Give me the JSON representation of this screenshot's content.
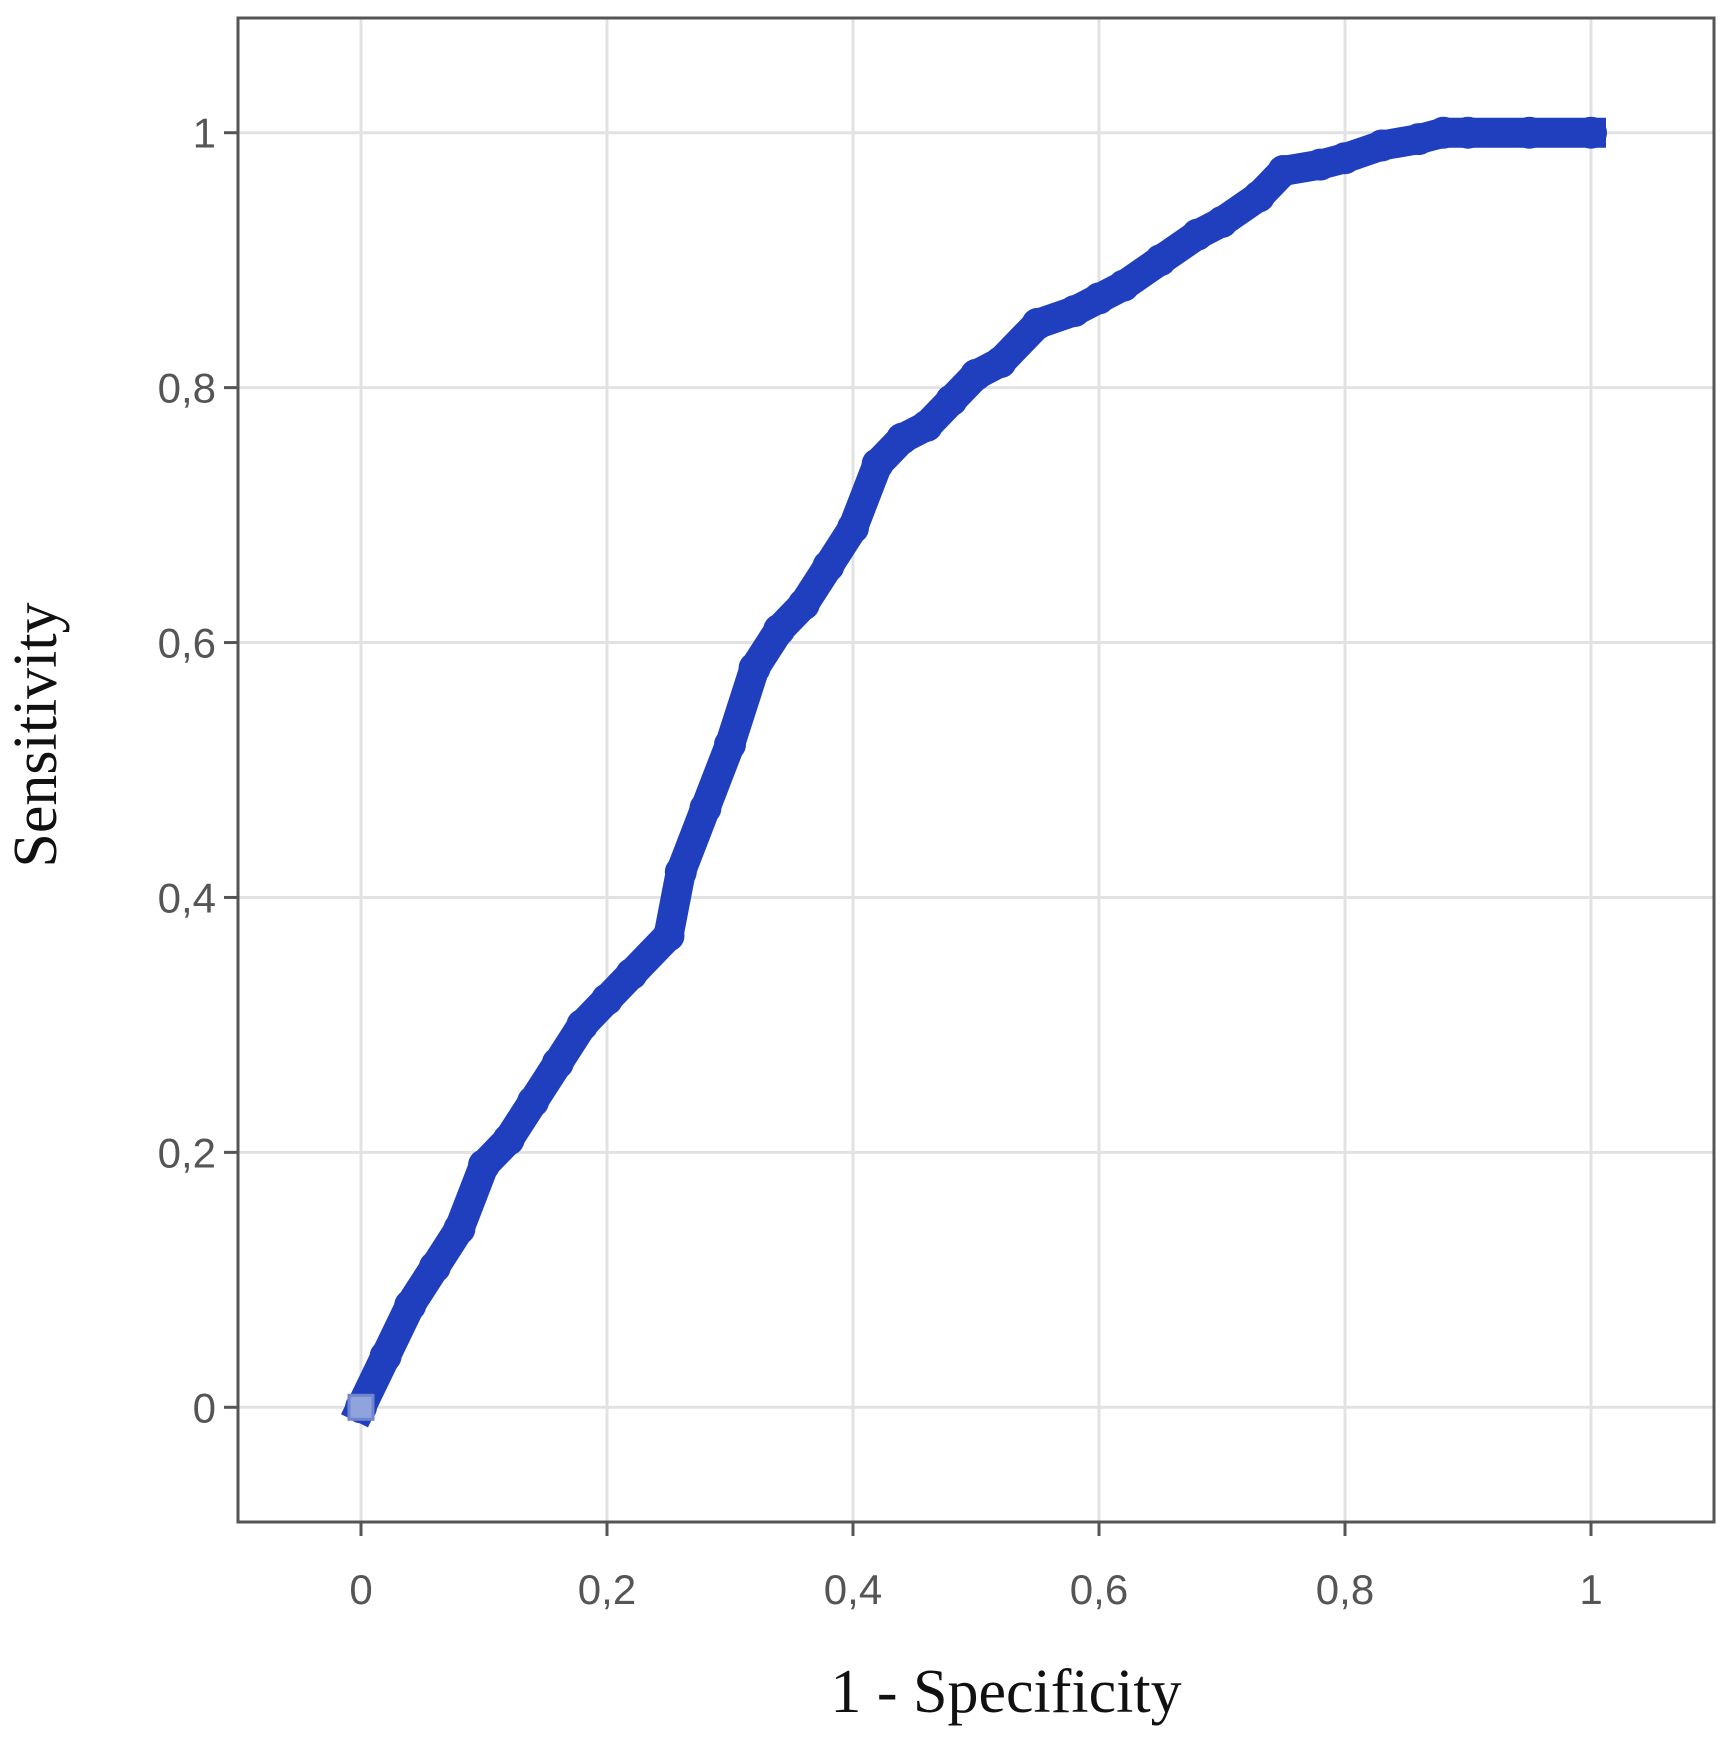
{
  "chart_data": {
    "type": "line",
    "title": "",
    "xlabel": "1 - Specificity",
    "ylabel": "Sensitivity",
    "xlim": [
      -0.1,
      1.1
    ],
    "ylim": [
      -0.09,
      1.09
    ],
    "x_ticks": [
      0,
      0.2,
      0.4,
      0.6,
      0.8,
      1
    ],
    "x_tick_labels": [
      "0",
      "0,2",
      "0,4",
      "0,6",
      "0,8",
      "1"
    ],
    "y_ticks": [
      0,
      0.2,
      0.4,
      0.6,
      0.8,
      1
    ],
    "y_tick_labels": [
      "0",
      "0,2",
      "0,4",
      "0,6",
      "0,8",
      "1"
    ],
    "grid": true,
    "series_color": "#1f3fbf",
    "start_marker_color": "#8fa3dd",
    "series": [
      {
        "x": [
          0,
          0.02,
          0.04,
          0.06,
          0.08,
          0.1,
          0.12,
          0.14,
          0.16,
          0.18,
          0.2,
          0.22,
          0.25,
          0.26,
          0.28,
          0.3,
          0.32,
          0.34,
          0.36,
          0.38,
          0.4,
          0.42,
          0.44,
          0.46,
          0.48,
          0.5,
          0.52,
          0.55,
          0.58,
          0.6,
          0.62,
          0.65,
          0.68,
          0.7,
          0.73,
          0.75,
          0.78,
          0.8,
          0.83,
          0.86,
          0.88,
          0.9,
          0.95,
          1.0
        ],
        "y": [
          0,
          0.04,
          0.08,
          0.11,
          0.14,
          0.19,
          0.21,
          0.24,
          0.27,
          0.3,
          0.32,
          0.34,
          0.37,
          0.42,
          0.47,
          0.52,
          0.58,
          0.61,
          0.63,
          0.66,
          0.69,
          0.74,
          0.76,
          0.77,
          0.79,
          0.81,
          0.82,
          0.85,
          0.86,
          0.87,
          0.88,
          0.9,
          0.92,
          0.93,
          0.95,
          0.97,
          0.975,
          0.98,
          0.99,
          0.995,
          1.0,
          1.0,
          1.0,
          1.0
        ]
      }
    ]
  }
}
